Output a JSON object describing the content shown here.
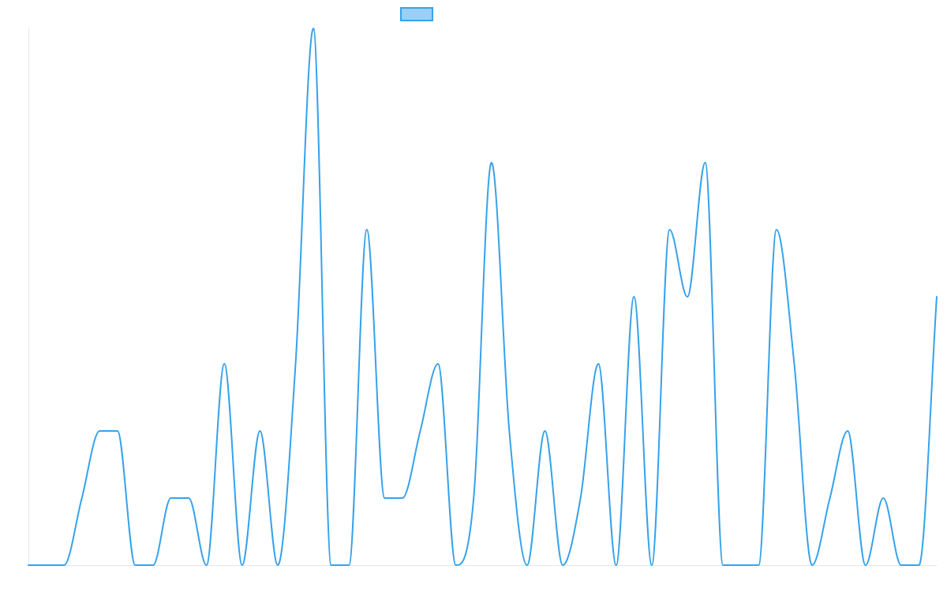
{
  "chart_data": {
    "type": "line",
    "title": "",
    "xlabel": "",
    "ylabel": "",
    "grid": false,
    "legend": {
      "position": "top-center"
    },
    "ylim": [
      0,
      8
    ],
    "x": [
      0,
      1,
      2,
      3,
      4,
      5,
      6,
      7,
      8,
      9,
      10,
      11,
      12,
      13,
      14,
      15,
      16,
      17,
      18,
      19,
      20,
      21,
      22,
      23,
      24,
      25,
      26,
      27,
      28,
      29,
      30,
      31,
      32,
      33,
      34,
      35,
      36,
      37,
      38,
      39,
      40,
      41,
      42,
      43,
      44,
      45,
      46,
      47,
      48,
      49,
      50,
      51
    ],
    "series": [
      {
        "name": "",
        "color": "#36a2eb",
        "fill_color": "#9ad0f5",
        "tension": 0.4,
        "values": [
          0,
          0,
          0,
          1,
          2,
          2,
          0,
          0,
          1,
          1,
          0,
          3,
          0,
          2,
          0,
          3,
          8,
          0,
          0,
          5,
          1,
          1,
          2,
          3,
          0,
          1,
          6,
          2,
          0,
          2,
          0,
          1,
          3,
          0,
          4,
          0,
          5,
          4,
          6,
          0,
          0,
          0,
          5,
          3,
          0,
          1,
          2,
          0,
          1,
          0,
          0,
          4
        ]
      }
    ]
  }
}
